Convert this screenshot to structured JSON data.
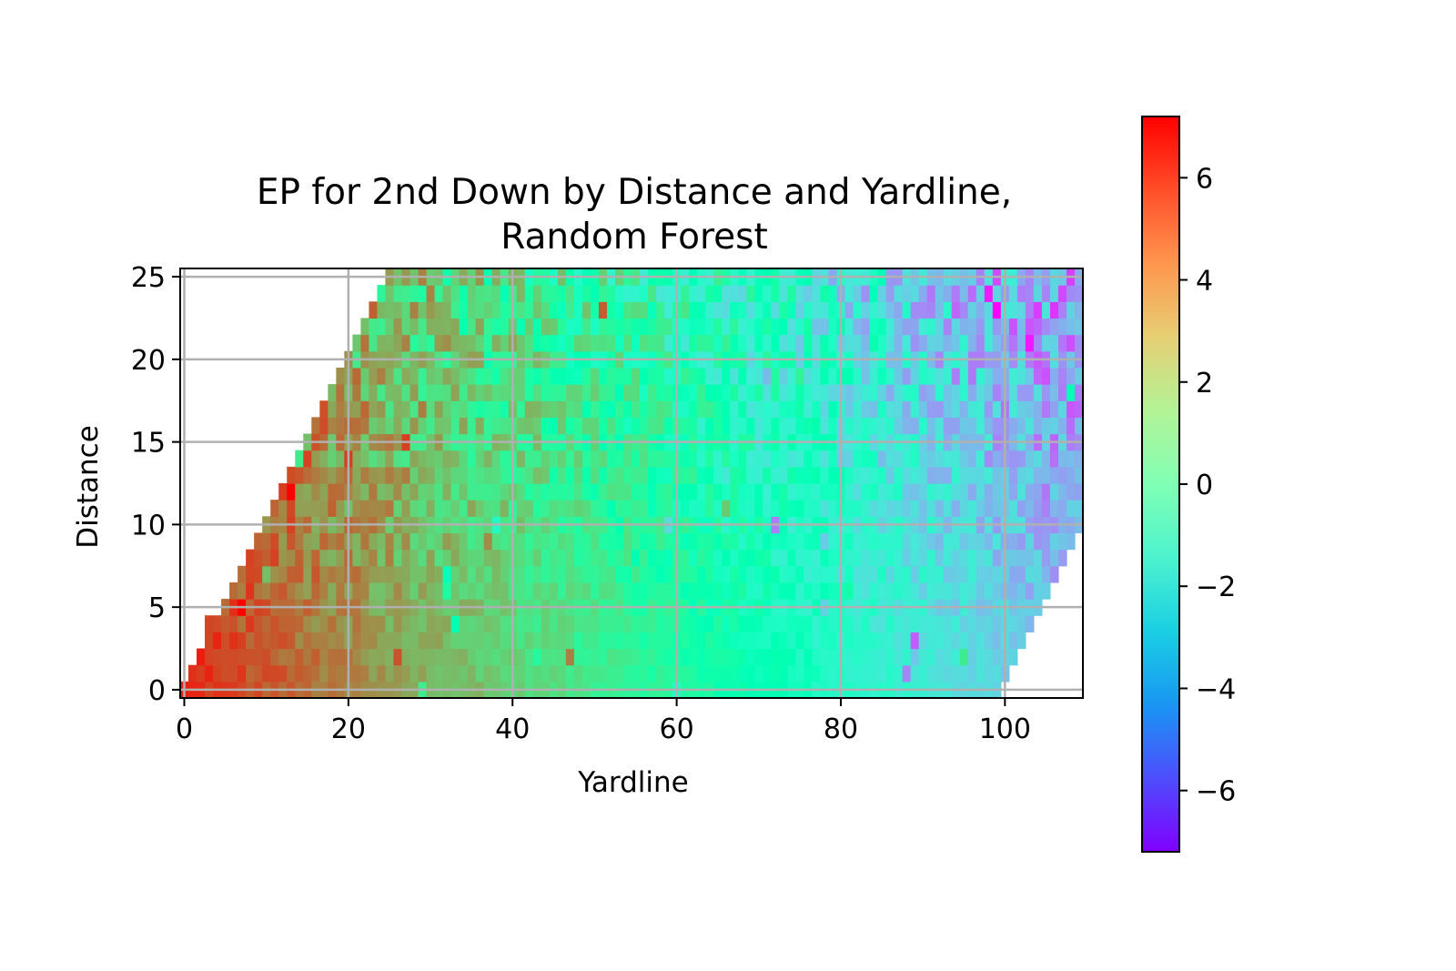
{
  "chart_data": {
    "type": "heatmap",
    "title_line1": "EP for 2nd Down by Distance and Yardline,",
    "title_line2": "Random Forest",
    "xlabel": "Yardline",
    "ylabel": "Distance",
    "xlim": [
      -0.5,
      109.5
    ],
    "ylim": [
      -0.5,
      25.5
    ],
    "xticks": [
      0,
      20,
      40,
      60,
      80,
      100
    ],
    "yticks": [
      0,
      5,
      10,
      15,
      20,
      25
    ],
    "grid": true,
    "colormap": "rainbow",
    "colorbar": {
      "vmin": -7.2,
      "vmax": 7.2,
      "ticks": [
        6,
        4,
        2,
        0,
        -2,
        -4,
        -6
      ],
      "tick_labels": [
        "6",
        "4",
        "2",
        "0",
        "−2",
        "−4",
        "−6"
      ]
    },
    "field": {
      "x_min": 0,
      "x_max": 109,
      "y_min": 0,
      "y_max": 25,
      "value_at_yardline_0": 6.5,
      "value_at_yardline_109": -3.6,
      "noise_amplitude": 1.3,
      "row_start_yardline": [
        0,
        1,
        2,
        3,
        3,
        5,
        6,
        7,
        8,
        9,
        10,
        11,
        12,
        13,
        14,
        15,
        16,
        17,
        18,
        19,
        20,
        21,
        22,
        23,
        24,
        25
      ],
      "row_end_yardline": [
        99,
        100,
        101,
        102,
        103,
        104,
        105,
        106,
        107,
        108,
        109,
        109,
        109,
        109,
        109,
        109,
        109,
        109,
        109,
        109,
        109,
        109,
        109,
        109,
        109,
        109
      ]
    }
  }
}
